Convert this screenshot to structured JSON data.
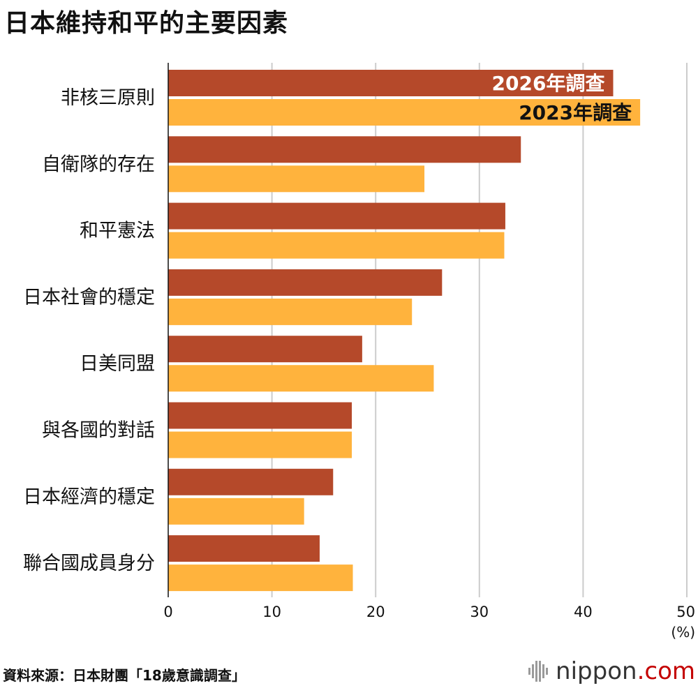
{
  "title": "日本維持和平的主要因素",
  "chart_data": {
    "type": "bar",
    "orientation": "horizontal",
    "title": "日本維持和平的主要因素",
    "categories": [
      "非核三原則",
      "自衛隊的存在",
      "和平憲法",
      "日本社會的穩定",
      "日美同盟",
      "與各國的對話",
      "日本經濟的穩定",
      "聯合國成員身分"
    ],
    "series": [
      {
        "name": "2026年調查",
        "color": "#b5492a",
        "values": [
          42.9,
          34.0,
          32.5,
          26.4,
          18.7,
          17.7,
          15.9,
          14.6
        ]
      },
      {
        "name": "2023年調查",
        "color": "#ffb33d",
        "values": [
          45.5,
          24.7,
          32.4,
          23.5,
          25.6,
          17.7,
          13.1,
          17.8
        ]
      }
    ],
    "xlim": [
      0,
      50
    ],
    "xticks": [
      0,
      10,
      20,
      30,
      40,
      50
    ],
    "unit_label": "(%)",
    "grid": true,
    "legend": "in-bar labels on first category"
  },
  "footer": {
    "source": "資料來源：日本財團「18歲意識調查」"
  },
  "brand": {
    "name": "nippon",
    "tld": ".com"
  }
}
